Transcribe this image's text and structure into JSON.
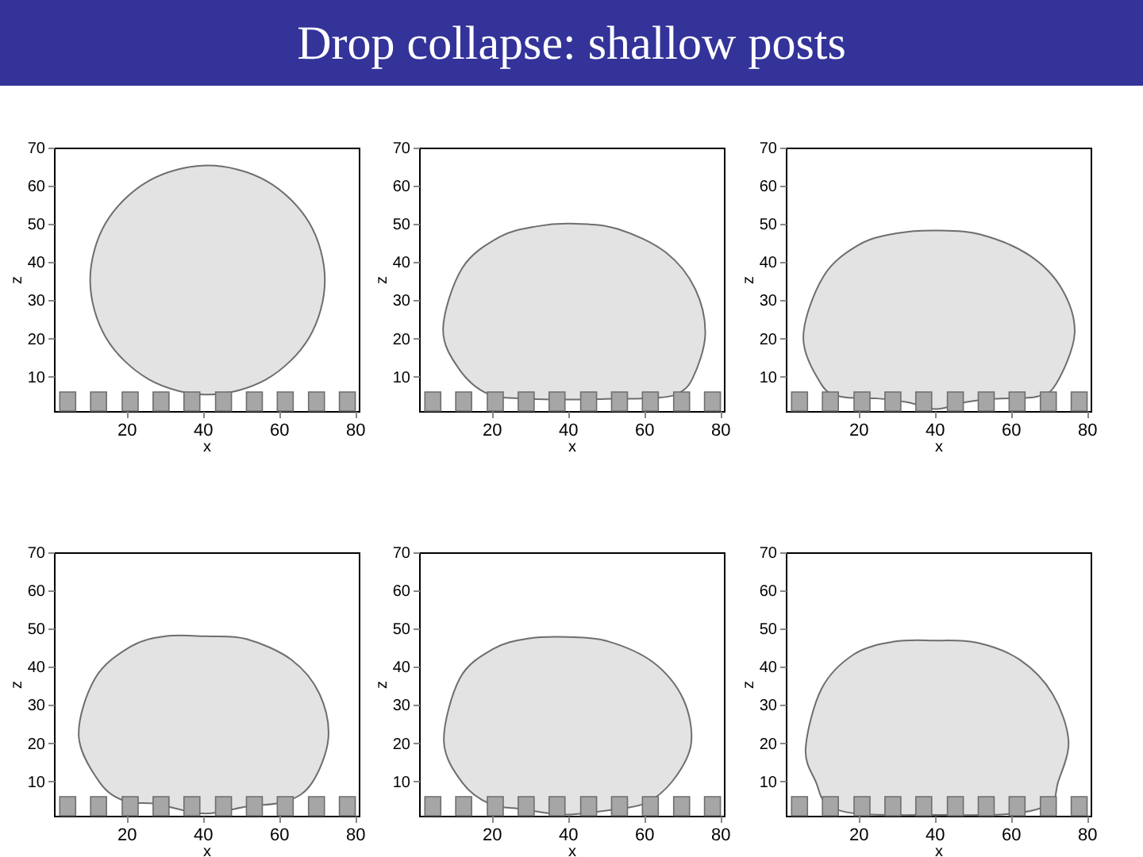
{
  "chart_data": [
    {
      "type": "area",
      "title": "Drop collapse: shallow posts",
      "xlabel": "x",
      "ylabel": "z",
      "xlim": [
        1,
        81
      ],
      "ylim": [
        1,
        70
      ],
      "xticks": [
        20,
        40,
        60,
        80
      ],
      "yticks": [
        10,
        20,
        30,
        40,
        50,
        60,
        70
      ],
      "grid": false,
      "marker": "none",
      "series": [
        {
          "color": "#e3e3e3",
          "x": [
            41.3,
            56.7,
            68.0,
            72.1,
            68.0,
            56.7,
            41.3,
            25.9,
            14.6,
            10.5,
            14.6,
            25.9
          ],
          "values": [
            65.3,
            61.3,
            50.3,
            35.3,
            20.3,
            9.3,
            5.3,
            9.3,
            20.3,
            35.3,
            50.3,
            61.3
          ]
        },
        {
          "type": "bar",
          "color": "#a6a6a6",
          "x": [
            4.6,
            12.7,
            21.0,
            29.1,
            37.2,
            45.5,
            53.6,
            61.7,
            69.9,
            78.0
          ],
          "base": [
            1,
            1,
            1,
            1,
            1,
            1,
            1,
            1,
            1,
            1
          ],
          "values": [
            5,
            5,
            5,
            5,
            5,
            5,
            5,
            5,
            5,
            5
          ]
        }
      ]
    },
    {
      "type": "area",
      "xlabel": "x",
      "ylabel": "z",
      "xlim": [
        1,
        81
      ],
      "ylim": [
        1,
        70
      ],
      "xticks": [
        20,
        40,
        60,
        80
      ],
      "yticks": [
        10,
        20,
        30,
        40,
        50,
        60,
        70
      ],
      "grid": false,
      "marker": "none",
      "series": [
        {
          "color": "#e3e3e3",
          "x": [
            41.1,
            53.1,
            65.8,
            73.5,
            76.1,
            72.8,
            68.6,
            62,
            52,
            41,
            30,
            19.3,
            11.5,
            7.3,
            12.3,
            22.1,
            32
          ],
          "values": [
            50.1,
            48.7,
            42.5,
            32.9,
            21,
            9.6,
            5.4,
            4.4,
            4.2,
            4,
            4.2,
            5.4,
            12,
            22.6,
            38.4,
            46.6,
            49.4
          ]
        },
        {
          "type": "bar",
          "color": "#a6a6a6",
          "x": [
            4.6,
            12.7,
            21.0,
            29.1,
            37.2,
            45.5,
            53.6,
            61.7,
            69.9,
            78.0
          ],
          "base": [
            1,
            1,
            1,
            1,
            1,
            1,
            1,
            1,
            1,
            1
          ],
          "values": [
            5,
            5,
            5,
            5,
            5,
            5,
            5,
            5,
            5,
            5
          ]
        }
      ]
    },
    {
      "type": "area",
      "xlabel": "x",
      "ylabel": "z",
      "xlim": [
        1,
        81
      ],
      "ylim": [
        1,
        70
      ],
      "xticks": [
        20,
        40,
        60,
        80
      ],
      "yticks": [
        10,
        20,
        30,
        40,
        50,
        60,
        70
      ],
      "grid": false,
      "marker": "none",
      "series": [
        {
          "color": "#e3e3e3",
          "x": [
            40.4,
            51.9,
            64.9,
            73.5,
            76.8,
            72,
            67,
            56,
            48,
            40.4,
            33,
            25,
            15.3,
            10.2,
            5.6,
            10.9,
            20.3,
            30.4
          ],
          "values": [
            48.3,
            47.3,
            41.8,
            32.9,
            21.2,
            8.2,
            4.8,
            4.2,
            3.3,
            1.5,
            3.3,
            4.3,
            4.8,
            8.2,
            20.5,
            36.3,
            44.6,
            47.6
          ]
        },
        {
          "type": "bar",
          "color": "#a6a6a6",
          "x": [
            4.6,
            12.7,
            21.0,
            29.1,
            37.2,
            45.5,
            53.6,
            61.7,
            69.9,
            78.0
          ],
          "base": [
            1,
            1,
            1,
            1,
            1,
            1,
            1,
            1,
            1,
            1
          ],
          "values": [
            5,
            5,
            5,
            5,
            5,
            5,
            5,
            5,
            5,
            5
          ]
        }
      ]
    },
    {
      "type": "area",
      "xlabel": "x",
      "ylabel": "z",
      "xlim": [
        1,
        81
      ],
      "ylim": [
        1,
        70
      ],
      "xticks": [
        20,
        40,
        60,
        80
      ],
      "yticks": [
        10,
        20,
        30,
        40,
        50,
        60,
        70
      ],
      "grid": false,
      "marker": "none",
      "series": [
        {
          "color": "#e3e3e3",
          "x": [
            40.9,
            51.5,
            63.4,
            70.7,
            73,
            68.7,
            62.1,
            51.5,
            40.3,
            27.7,
            19.7,
            13.1,
            7.5,
            11.8,
            21.1,
            30.3
          ],
          "values": [
            48,
            47.3,
            41.8,
            32.9,
            21.2,
            9.6,
            4.8,
            3.4,
            1.6,
            4.1,
            4.8,
            9.6,
            21.9,
            37,
            45.3,
            48
          ]
        },
        {
          "type": "bar",
          "color": "#a6a6a6",
          "x": [
            4.6,
            12.7,
            21.0,
            29.1,
            37.2,
            45.5,
            53.6,
            61.7,
            69.9,
            78.0
          ],
          "base": [
            1,
            1,
            1,
            1,
            1,
            1,
            1,
            1,
            1,
            1
          ],
          "values": [
            5,
            5,
            5,
            5,
            5,
            5,
            5,
            5,
            5,
            5
          ]
        }
      ]
    },
    {
      "type": "area",
      "xlabel": "x",
      "ylabel": "z",
      "xlim": [
        1,
        81
      ],
      "ylim": [
        1,
        70
      ],
      "xticks": [
        20,
        40,
        60,
        80
      ],
      "yticks": [
        10,
        20,
        30,
        40,
        50,
        60,
        70
      ],
      "grid": false,
      "marker": "none",
      "series": [
        {
          "color": "#e3e3e3",
          "x": [
            40,
            50.5,
            62.4,
            70.3,
            72.4,
            67.6,
            60.4,
            50.5,
            39.3,
            28.2,
            19.6,
            12.4,
            7.5,
            11.7,
            20.3,
            29.5
          ],
          "values": [
            47.8,
            46.7,
            41.2,
            31.6,
            19.9,
            10.2,
            4.3,
            2.4,
            1.3,
            2.7,
            4.1,
            9.6,
            20.6,
            37,
            44.6,
            47.4
          ]
        },
        {
          "type": "bar",
          "color": "#a6a6a6",
          "x": [
            4.6,
            12.7,
            21.0,
            29.1,
            37.2,
            45.5,
            53.6,
            61.7,
            69.9,
            78.0
          ],
          "base": [
            1,
            1,
            1,
            1,
            1,
            1,
            1,
            1,
            1,
            1
          ],
          "values": [
            5,
            5,
            5,
            5,
            5,
            5,
            5,
            5,
            5,
            5
          ]
        }
      ]
    },
    {
      "type": "area",
      "xlabel": "x",
      "ylabel": "z",
      "xlim": [
        1,
        81
      ],
      "ylim": [
        1,
        70
      ],
      "xticks": [
        20,
        40,
        60,
        80
      ],
      "yticks": [
        10,
        20,
        30,
        40,
        50,
        60,
        70
      ],
      "grid": false,
      "marker": "none",
      "series": [
        {
          "color": "#e3e3e3",
          "x": [
            40,
            51.3,
            62.5,
            71,
            75.2,
            72.4,
            70.3,
            60,
            40,
            20,
            11.8,
            9,
            6.2,
            10.4,
            18.9,
            29.4
          ],
          "values": [
            46.9,
            46.3,
            41.8,
            32.9,
            20.6,
            9.6,
            4.1,
            1.5,
            1.2,
            1.5,
            4.1,
            9.6,
            18.5,
            34.3,
            43.3,
            46.6
          ]
        },
        {
          "type": "bar",
          "color": "#a6a6a6",
          "x": [
            4.6,
            12.7,
            21.0,
            29.1,
            37.2,
            45.5,
            53.6,
            61.7,
            69.9,
            78.0
          ],
          "base": [
            1,
            1,
            1,
            1,
            1,
            1,
            1,
            1,
            1,
            1
          ],
          "values": [
            5,
            5,
            5,
            5,
            5,
            5,
            5,
            5,
            5,
            5
          ]
        }
      ]
    }
  ]
}
